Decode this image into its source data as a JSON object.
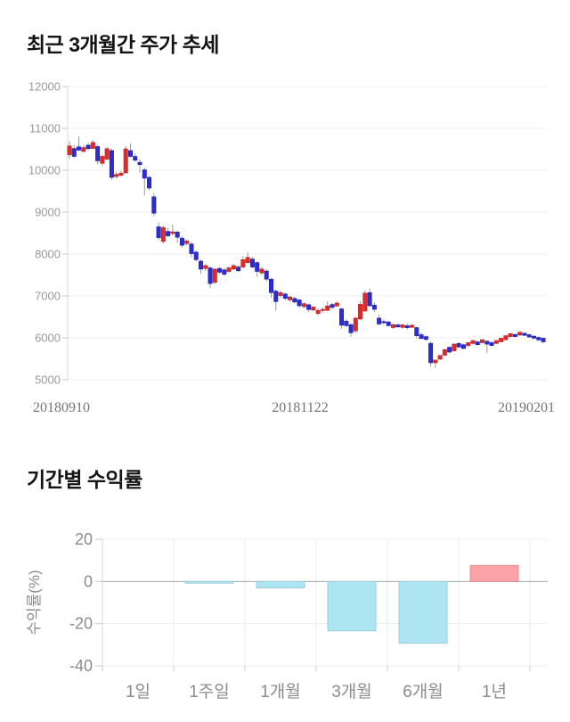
{
  "page_background": "#ffffff",
  "chart_data": [
    {
      "type": "candlestick",
      "title": "최근 3개월간 주가 추세",
      "x_tick_labels": [
        "20180910",
        "20181122",
        "20190201"
      ],
      "y_ticks": [
        12000,
        11000,
        10000,
        9000,
        8000,
        7000,
        6000,
        5000
      ],
      "ylim": [
        5000,
        12000
      ],
      "grid": "horizontal",
      "legend": "none",
      "colors": {
        "up_body": "#dd2c2c",
        "up_border": "#bb1f1f",
        "down_body": "#2d2dd0",
        "down_border": "#2020ab",
        "wick": "#999999",
        "grid_line": "#ededed",
        "axis_line": "#d8d8d8",
        "tick_mark": "#c9c9c9",
        "y_label": "#9a9a9a",
        "x_label": "#747474"
      },
      "candles_ohlc": [
        [
          10370,
          10690,
          10280,
          10580
        ],
        [
          10520,
          10600,
          10300,
          10330
        ],
        [
          10560,
          10810,
          10460,
          10480
        ],
        [
          10450,
          10600,
          10420,
          10540
        ],
        [
          10600,
          10650,
          10480,
          10515
        ],
        [
          10520,
          10720,
          10500,
          10665
        ],
        [
          10565,
          10600,
          10140,
          10225
        ],
        [
          10165,
          10380,
          10100,
          10330
        ],
        [
          10265,
          10550,
          10240,
          10515
        ],
        [
          10470,
          10520,
          9760,
          9830
        ],
        [
          9850,
          9960,
          9800,
          9900
        ],
        [
          9880,
          9990,
          9850,
          9930
        ],
        [
          9935,
          10580,
          9930,
          10510
        ],
        [
          10470,
          10640,
          10300,
          10330
        ],
        [
          10330,
          10400,
          10200,
          10240
        ],
        [
          10190,
          10260,
          9950,
          10135
        ],
        [
          10010,
          10060,
          9400,
          9810
        ],
        [
          9830,
          9870,
          9520,
          9575
        ],
        [
          9365,
          9450,
          8900,
          8975
        ],
        [
          8650,
          8755,
          8330,
          8390
        ],
        [
          8300,
          8680,
          8250,
          8630
        ],
        [
          8540,
          8620,
          8400,
          8435
        ],
        [
          8490,
          8700,
          8440,
          8530
        ],
        [
          8525,
          8560,
          8270,
          8400
        ],
        [
          8380,
          8420,
          8150,
          8210
        ],
        [
          8250,
          8350,
          8200,
          8315
        ],
        [
          8240,
          8280,
          7920,
          8010
        ],
        [
          8045,
          8090,
          7820,
          7865
        ],
        [
          7830,
          7870,
          7525,
          7640
        ],
        [
          7655,
          7760,
          7600,
          7725
        ],
        [
          7670,
          7700,
          7190,
          7295
        ],
        [
          7325,
          7660,
          7280,
          7640
        ],
        [
          7655,
          7700,
          7520,
          7565
        ],
        [
          7620,
          7660,
          7480,
          7515
        ],
        [
          7585,
          7700,
          7550,
          7670
        ],
        [
          7640,
          7760,
          7620,
          7725
        ],
        [
          7690,
          7730,
          7570,
          7600
        ],
        [
          7690,
          7950,
          7660,
          7865
        ],
        [
          7795,
          8040,
          7770,
          7920
        ],
        [
          7880,
          7930,
          7660,
          7690
        ],
        [
          7795,
          7830,
          7460,
          7585
        ],
        [
          7550,
          7700,
          7500,
          7640
        ],
        [
          7595,
          7640,
          7350,
          7400
        ],
        [
          7400,
          7430,
          6960,
          7080
        ],
        [
          7115,
          7150,
          6650,
          6865
        ],
        [
          7010,
          7120,
          6950,
          7080
        ],
        [
          7045,
          7090,
          6900,
          6940
        ],
        [
          6905,
          7000,
          6870,
          6975
        ],
        [
          6940,
          6980,
          6820,
          6855
        ],
        [
          6905,
          6930,
          6720,
          6765
        ],
        [
          6745,
          6850,
          6700,
          6815
        ],
        [
          6790,
          6820,
          6620,
          6675
        ],
        [
          6665,
          6760,
          6630,
          6735
        ],
        [
          6580,
          6700,
          6540,
          6655
        ],
        [
          6655,
          6730,
          6600,
          6680
        ],
        [
          6655,
          6865,
          6640,
          6760
        ],
        [
          6795,
          6830,
          6690,
          6725
        ],
        [
          6760,
          6870,
          6740,
          6830
        ],
        [
          6690,
          6720,
          6215,
          6300
        ],
        [
          6400,
          6440,
          6260,
          6290
        ],
        [
          6315,
          6350,
          6030,
          6120
        ],
        [
          6165,
          6490,
          6120,
          6470
        ],
        [
          6450,
          6880,
          6420,
          6800
        ],
        [
          6640,
          7135,
          6620,
          7065
        ],
        [
          7080,
          7175,
          6740,
          6765
        ],
        [
          6780,
          6840,
          6620,
          6680
        ],
        [
          6470,
          6550,
          6300,
          6330
        ],
        [
          6390,
          6440,
          6320,
          6360
        ],
        [
          6380,
          6410,
          6270,
          6290
        ],
        [
          6245,
          6340,
          6210,
          6315
        ],
        [
          6310,
          6340,
          6230,
          6260
        ],
        [
          6250,
          6330,
          6220,
          6310
        ],
        [
          6290,
          6340,
          6200,
          6240
        ],
        [
          6250,
          6315,
          6240,
          6300
        ],
        [
          6245,
          6260,
          5990,
          6050
        ],
        [
          6075,
          6130,
          5960,
          5985
        ],
        [
          6030,
          6060,
          5930,
          5960
        ],
        [
          5870,
          5910,
          5310,
          5405
        ],
        [
          5405,
          5475,
          5280,
          5470
        ],
        [
          5490,
          5590,
          5470,
          5580
        ],
        [
          5585,
          5730,
          5570,
          5720
        ],
        [
          5775,
          5790,
          5630,
          5660
        ],
        [
          5690,
          5870,
          5670,
          5850
        ],
        [
          5865,
          5900,
          5760,
          5780
        ],
        [
          5835,
          5860,
          5730,
          5745
        ],
        [
          5815,
          5900,
          5790,
          5885
        ],
        [
          5865,
          5950,
          5840,
          5935
        ],
        [
          5905,
          5930,
          5820,
          5835
        ],
        [
          5885,
          5970,
          5860,
          5955
        ],
        [
          5920,
          5940,
          5635,
          5850
        ],
        [
          5885,
          5920,
          5800,
          5815
        ],
        [
          5865,
          5950,
          5850,
          5935
        ],
        [
          5905,
          6000,
          5890,
          5990
        ],
        [
          5955,
          6060,
          5940,
          6050
        ],
        [
          6030,
          6110,
          6010,
          6100
        ],
        [
          6080,
          6100,
          6010,
          6030
        ],
        [
          6065,
          6140,
          6050,
          6135
        ],
        [
          6110,
          6130,
          6040,
          6060
        ],
        [
          6075,
          6095,
          6000,
          6020
        ],
        [
          6040,
          6060,
          5960,
          5990
        ],
        [
          6010,
          6030,
          5930,
          5950
        ],
        [
          5990,
          6010,
          5870,
          5905
        ]
      ]
    },
    {
      "type": "bar",
      "title": "기간별 수익률",
      "ylabel": "수익률(%)",
      "categories": [
        "1일",
        "1주일",
        "1개월",
        "3개월",
        "6개월",
        "1년"
      ],
      "values": [
        0,
        -0.8,
        -3.0,
        -23.4,
        -29.3,
        7.6
      ],
      "y_ticks": [
        20,
        0,
        -20,
        -40
      ],
      "ylim": [
        -45,
        25
      ],
      "grid": true,
      "legend": "none",
      "colors": {
        "negative_fill": "#ade6f2",
        "negative_border": "#9acdd9",
        "positive_fill": "#f9a2a7",
        "positive_border": "#e09196",
        "zero_line": "#aaaaaa",
        "grid_line": "#ededed",
        "axis_line": "#d8d8d8",
        "tick_mark": "#c9c9c9",
        "label": "#8c8c8c"
      }
    }
  ]
}
